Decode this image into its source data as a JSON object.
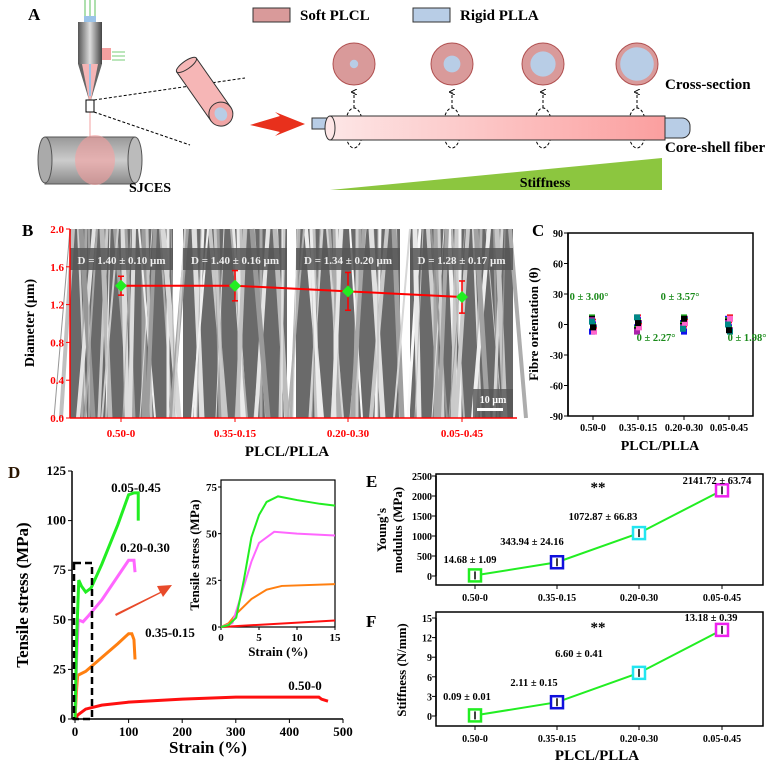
{
  "panel_labels": {
    "a": "A",
    "b": "B",
    "c": "C",
    "d": "D",
    "e": "E",
    "f": "F"
  },
  "schematic": {
    "legend": [
      {
        "label": "Soft PLCL",
        "color": "#d99a9a"
      },
      {
        "label": "Rigid PLLA",
        "color": "#b8cde6"
      }
    ],
    "method_label": "SJCES",
    "cross_section_label": "Cross-section",
    "fiber_label": "Core-shell fiber",
    "stiffness_label": "Stiffness",
    "core_fractions": [
      0.2,
      0.4,
      0.6,
      0.8
    ],
    "colors": {
      "shell": "#d99a9a",
      "core": "#b8cde6",
      "arrow": "#e8301c",
      "stiffness": "#8cc63f"
    }
  },
  "chart_data": [
    {
      "id": "B",
      "type": "line",
      "categories": [
        "0.50-0",
        "0.35-0.15",
        "0.20-0.30",
        "0.05-0.45"
      ],
      "values": [
        1.4,
        1.4,
        1.34,
        1.28
      ],
      "errors": [
        0.1,
        0.16,
        0.2,
        0.17
      ],
      "annotations": [
        "D = 1.40 ± 0.10 µm",
        "D = 1.40 ± 0.16 µm",
        "D = 1.34 ± 0.20 µm",
        "D = 1.28 ± 0.17 µm"
      ],
      "scale_bar": "10 µm",
      "xlabel": "PLCL/PLLA",
      "ylabel": "Diameter (µm)",
      "ylim": [
        0,
        2.0
      ],
      "yticks": [
        "0.0",
        "0.4",
        "0.8",
        "1.2",
        "1.6",
        "2.0"
      ],
      "colors": {
        "axis": "#ff0000",
        "marker": "#22ee22"
      }
    },
    {
      "id": "C",
      "type": "scatter",
      "categories": [
        "0.50-0",
        "0.35-0.15",
        "0.20-0.30",
        "0.05-0.45"
      ],
      "center": [
        0,
        0,
        0,
        0
      ],
      "annotations": [
        "0 ± 3.00°",
        "0 ± 2.27°",
        "0 ± 3.57°",
        "0 ± 1.98°"
      ],
      "xlabel": "PLCL/PLLA",
      "ylabel": "Fibre orientation (θ)",
      "ylim": [
        -90,
        90
      ],
      "yticks": [
        "-90",
        "-60",
        "-30",
        "0",
        "30",
        "60",
        "90"
      ],
      "annotation_color": "#1a8a1a"
    },
    {
      "id": "D",
      "type": "line",
      "xlabel": "Strain (%)",
      "ylabel": "Tensile stress (MPa)",
      "xlim": [
        0,
        500
      ],
      "ylim": [
        0,
        125
      ],
      "xticks": [
        "0",
        "100",
        "200",
        "300",
        "400",
        "500"
      ],
      "yticks": [
        "0",
        "25",
        "50",
        "75",
        "100",
        "125"
      ],
      "series": [
        {
          "name": "0.50-0",
          "color": "#ff1010",
          "x": [
            0,
            5,
            20,
            50,
            100,
            200,
            300,
            400,
            455,
            460,
            472
          ],
          "y": [
            0,
            2,
            5,
            7,
            8.5,
            10,
            11,
            11,
            11,
            10,
            9
          ]
        },
        {
          "name": "0.35-0.15",
          "color": "#ff7f10",
          "x": [
            0,
            3,
            5,
            20,
            50,
            80,
            100,
            106,
            110,
            112
          ],
          "y": [
            0,
            15,
            22,
            24,
            31,
            38,
            43,
            43,
            40,
            30
          ]
        },
        {
          "name": "0.20-0.30",
          "color": "#ff66ff",
          "x": [
            0,
            3,
            6,
            15,
            25,
            50,
            80,
            100,
            110,
            112
          ],
          "y": [
            0,
            30,
            50,
            49,
            52,
            60,
            72,
            80,
            80,
            74
          ]
        },
        {
          "name": "0.05-0.45",
          "color": "#22ee22",
          "x": [
            0,
            3,
            7,
            12,
            20,
            30,
            50,
            80,
            100,
            110,
            118,
            118
          ],
          "y": [
            0,
            40,
            70,
            67,
            64,
            66,
            78,
            98,
            113,
            114,
            114,
            100
          ]
        }
      ],
      "inset": {
        "xlabel": "Strain (%)",
        "ylabel": "Tensile stress (MPa)",
        "xlim": [
          0,
          15
        ],
        "ylim": [
          0,
          75
        ],
        "xticks": [
          "0",
          "5",
          "10",
          "15"
        ],
        "yticks": [
          "0",
          "25",
          "50",
          "75"
        ],
        "series": [
          {
            "color": "#ff1010",
            "x": [
              0,
              15
            ],
            "y": [
              0,
              3.5
            ]
          },
          {
            "color": "#ff7f10",
            "x": [
              0,
              1,
              2,
              4,
              6,
              8,
              15
            ],
            "y": [
              0,
              2,
              7,
              15,
              20,
              22,
              23
            ]
          },
          {
            "color": "#ff66ff",
            "x": [
              0,
              1.5,
              2.5,
              4,
              5,
              7,
              10,
              15
            ],
            "y": [
              0,
              2,
              15,
              35,
              45,
              51,
              50,
              49
            ]
          },
          {
            "color": "#22ee22",
            "x": [
              0,
              1,
              2,
              3,
              4,
              5,
              6,
              7.5,
              10,
              13,
              15
            ],
            "y": [
              0,
              1,
              5,
              25,
              48,
              60,
              67,
              70,
              68,
              66,
              65
            ]
          }
        ]
      }
    },
    {
      "id": "E",
      "type": "line",
      "categories": [
        "0.50-0",
        "0.35-0.15",
        "0.20-0.30",
        "0.05-0.45"
      ],
      "values": [
        14.68,
        343.94,
        1072.87,
        2141.72
      ],
      "errors": [
        1.09,
        24.16,
        66.83,
        63.74
      ],
      "annotations": [
        "14.68 ± 1.09",
        "343.94 ± 24.16",
        "1072.87 ± 66.83",
        "2141.72 ± 63.74"
      ],
      "significance": "**",
      "ylabel_line1": "Young's",
      "ylabel_line2": "modulus (MPa)",
      "ylim": [
        0,
        2500
      ],
      "yticks": [
        "0",
        "500",
        "1000",
        "1500",
        "2000",
        "2500"
      ],
      "marker_colors": [
        "#22ee22",
        "#1010dd",
        "#22e5f0",
        "#ee22ee"
      ],
      "line_color": "#22ee22"
    },
    {
      "id": "F",
      "type": "line",
      "categories": [
        "0.50-0",
        "0.35-0.15",
        "0.20-0.30",
        "0.05-0.45"
      ],
      "values": [
        0.09,
        2.11,
        6.6,
        13.18
      ],
      "errors": [
        0.01,
        0.15,
        0.41,
        0.39
      ],
      "annotations": [
        "0.09 ± 0.01",
        "2.11 ± 0.15",
        "6.60 ± 0.41",
        "13.18 ± 0.39"
      ],
      "significance": "**",
      "xlabel": "PLCL/PLLA",
      "ylabel": "Stiffness (N/mm)",
      "ylim": [
        0,
        15
      ],
      "yticks": [
        "0",
        "3",
        "6",
        "9",
        "12",
        "15"
      ],
      "marker_colors": [
        "#22ee22",
        "#1010dd",
        "#22e5f0",
        "#ee22ee"
      ],
      "line_color": "#22ee22"
    }
  ]
}
